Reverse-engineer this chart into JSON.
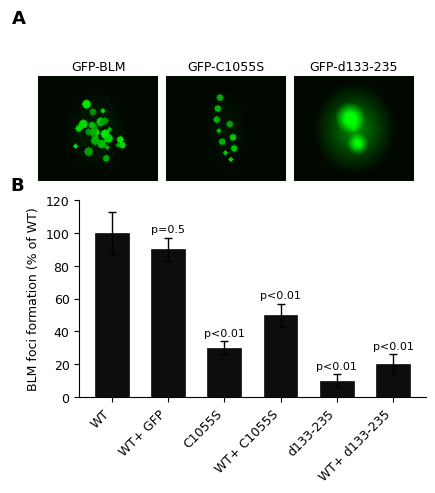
{
  "categories": [
    "WT",
    "WT+ GFP",
    "C1055S",
    "WT+ C1055S",
    "d133-235",
    "WT+ d133-235"
  ],
  "values": [
    100,
    90,
    30,
    50,
    10,
    20
  ],
  "errors": [
    13,
    7,
    4,
    7,
    4,
    6
  ],
  "pvalues": [
    "",
    "p=0.5",
    "p<0.01",
    "p<0.01",
    "p<0.01",
    "p<0.01"
  ],
  "bar_color": "#0d0d0d",
  "ylabel": "BLM foci formation (% of WT)",
  "ylim": [
    0,
    120
  ],
  "yticks": [
    0,
    20,
    40,
    60,
    80,
    100,
    120
  ],
  "panel_a_label": "A",
  "panel_b_label": "B",
  "image_labels": [
    "GFP-BLM",
    "GFP-C1055S",
    "GFP-d133-235"
  ],
  "bg_color": "#ffffff",
  "text_color": "#000000",
  "bar_width": 0.6,
  "img_fontsize": 9,
  "axis_fontsize": 9,
  "tick_fontsize": 9,
  "pval_fontsize": 8,
  "label_fontsize": 13
}
